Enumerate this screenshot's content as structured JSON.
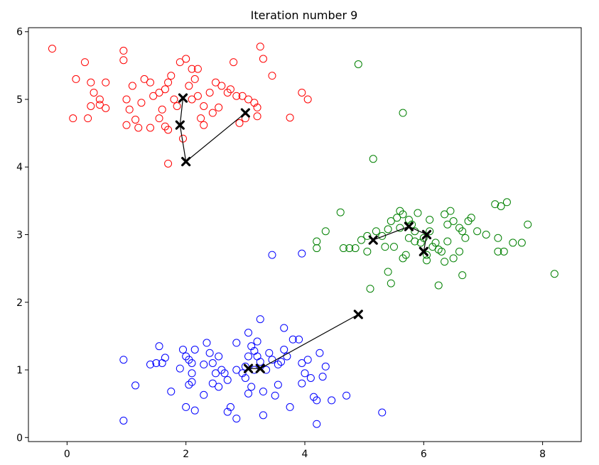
{
  "chart_data": {
    "type": "scatter",
    "title": "Iteration number 9",
    "xlabel": "",
    "ylabel": "",
    "xlim": [
      -0.65,
      8.65
    ],
    "ylim": [
      -0.06,
      6.06
    ],
    "x_ticks": [
      0,
      2,
      4,
      6,
      8
    ],
    "y_ticks": [
      0,
      1,
      2,
      3,
      4,
      5,
      6
    ],
    "grid": false,
    "legend": "none",
    "marker": "hollow-circle",
    "series": [
      {
        "color": "#ff0000",
        "points": [
          [
            -0.25,
            5.75
          ],
          [
            0.15,
            5.3
          ],
          [
            0.3,
            5.55
          ],
          [
            0.4,
            5.25
          ],
          [
            0.45,
            5.1
          ],
          [
            0.55,
            5.0
          ],
          [
            0.65,
            5.25
          ],
          [
            0.55,
            4.92
          ],
          [
            0.4,
            4.9
          ],
          [
            0.35,
            4.72
          ],
          [
            0.1,
            4.72
          ],
          [
            0.65,
            4.87
          ],
          [
            0.95,
            5.72
          ],
          [
            0.95,
            5.58
          ],
          [
            1.0,
            5.0
          ],
          [
            1.1,
            5.2
          ],
          [
            1.05,
            4.85
          ],
          [
            1.0,
            4.62
          ],
          [
            1.2,
            4.58
          ],
          [
            1.15,
            4.7
          ],
          [
            1.25,
            4.95
          ],
          [
            1.3,
            5.3
          ],
          [
            1.4,
            5.25
          ],
          [
            1.45,
            5.05
          ],
          [
            1.4,
            4.58
          ],
          [
            1.55,
            5.1
          ],
          [
            1.6,
            4.85
          ],
          [
            1.55,
            4.72
          ],
          [
            1.65,
            4.6
          ],
          [
            1.7,
            4.55
          ],
          [
            1.65,
            5.15
          ],
          [
            1.7,
            5.25
          ],
          [
            1.75,
            5.35
          ],
          [
            1.8,
            5.0
          ],
          [
            1.9,
            5.55
          ],
          [
            2.0,
            5.6
          ],
          [
            2.1,
            5.45
          ],
          [
            2.2,
            5.45
          ],
          [
            2.15,
            5.3
          ],
          [
            2.05,
            5.2
          ],
          [
            2.1,
            5.0
          ],
          [
            2.2,
            5.05
          ],
          [
            2.3,
            4.9
          ],
          [
            2.4,
            5.1
          ],
          [
            2.25,
            4.72
          ],
          [
            2.3,
            4.62
          ],
          [
            2.45,
            4.8
          ],
          [
            2.55,
            4.88
          ],
          [
            2.5,
            5.25
          ],
          [
            2.6,
            5.2
          ],
          [
            2.75,
            5.15
          ],
          [
            2.8,
            5.55
          ],
          [
            2.85,
            5.05
          ],
          [
            2.95,
            5.05
          ],
          [
            3.05,
            5.0
          ],
          [
            3.15,
            4.95
          ],
          [
            3.2,
            4.88
          ],
          [
            3.3,
            5.6
          ],
          [
            3.25,
            5.78
          ],
          [
            3.45,
            5.35
          ],
          [
            3.75,
            4.73
          ],
          [
            3.95,
            5.1
          ],
          [
            4.05,
            5.0
          ],
          [
            1.7,
            4.05
          ],
          [
            1.95,
            4.42
          ],
          [
            2.9,
            4.65
          ],
          [
            3.0,
            4.72
          ],
          [
            1.85,
            4.9
          ],
          [
            2.7,
            5.1
          ],
          [
            3.2,
            4.75
          ]
        ]
      },
      {
        "color": "#008000",
        "points": [
          [
            4.9,
            5.52
          ],
          [
            5.65,
            4.8
          ],
          [
            5.15,
            4.12
          ],
          [
            4.2,
            2.9
          ],
          [
            4.2,
            2.8
          ],
          [
            4.35,
            3.05
          ],
          [
            4.6,
            3.33
          ],
          [
            4.65,
            2.8
          ],
          [
            4.75,
            2.8
          ],
          [
            4.85,
            2.8
          ],
          [
            4.95,
            2.92
          ],
          [
            5.05,
            2.98
          ],
          [
            5.05,
            2.75
          ],
          [
            5.1,
            2.2
          ],
          [
            5.2,
            3.05
          ],
          [
            5.3,
            2.98
          ],
          [
            5.35,
            2.82
          ],
          [
            5.4,
            3.08
          ],
          [
            5.4,
            2.45
          ],
          [
            5.45,
            2.28
          ],
          [
            5.45,
            3.2
          ],
          [
            5.55,
            3.25
          ],
          [
            5.6,
            3.35
          ],
          [
            5.65,
            3.3
          ],
          [
            5.6,
            3.1
          ],
          [
            5.7,
            2.7
          ],
          [
            5.75,
            2.95
          ],
          [
            5.8,
            3.15
          ],
          [
            5.85,
            3.05
          ],
          [
            5.9,
            3.32
          ],
          [
            5.95,
            2.88
          ],
          [
            6.0,
            2.95
          ],
          [
            6.05,
            2.7
          ],
          [
            6.1,
            3.05
          ],
          [
            6.05,
            2.62
          ],
          [
            6.15,
            2.82
          ],
          [
            6.2,
            2.88
          ],
          [
            6.25,
            2.78
          ],
          [
            6.3,
            2.75
          ],
          [
            6.35,
            3.3
          ],
          [
            6.45,
            3.35
          ],
          [
            6.5,
            3.2
          ],
          [
            6.4,
            2.9
          ],
          [
            6.35,
            2.6
          ],
          [
            6.5,
            2.65
          ],
          [
            6.6,
            3.1
          ],
          [
            6.65,
            3.05
          ],
          [
            6.7,
            2.95
          ],
          [
            6.6,
            2.75
          ],
          [
            6.8,
            3.25
          ],
          [
            6.9,
            3.05
          ],
          [
            7.05,
            3.0
          ],
          [
            7.2,
            3.45
          ],
          [
            7.3,
            3.42
          ],
          [
            7.4,
            3.48
          ],
          [
            7.25,
            2.95
          ],
          [
            7.25,
            2.75
          ],
          [
            7.35,
            2.75
          ],
          [
            7.5,
            2.88
          ],
          [
            7.65,
            2.88
          ],
          [
            7.75,
            3.15
          ],
          [
            8.2,
            2.42
          ],
          [
            6.25,
            2.25
          ],
          [
            6.65,
            2.4
          ],
          [
            5.75,
            3.22
          ],
          [
            5.85,
            2.9
          ],
          [
            6.1,
            3.22
          ],
          [
            6.4,
            3.15
          ],
          [
            6.75,
            3.2
          ],
          [
            5.5,
            2.82
          ],
          [
            5.65,
            2.65
          ]
        ]
      },
      {
        "color": "#0000ff",
        "points": [
          [
            0.95,
            1.15
          ],
          [
            0.95,
            0.25
          ],
          [
            1.15,
            0.77
          ],
          [
            1.4,
            1.08
          ],
          [
            1.5,
            1.1
          ],
          [
            1.6,
            1.1
          ],
          [
            1.55,
            1.35
          ],
          [
            1.65,
            1.18
          ],
          [
            1.75,
            0.68
          ],
          [
            1.9,
            1.02
          ],
          [
            1.95,
            1.3
          ],
          [
            2.0,
            1.2
          ],
          [
            2.05,
            1.15
          ],
          [
            2.1,
            1.1
          ],
          [
            2.15,
            1.3
          ],
          [
            2.1,
            0.95
          ],
          [
            2.05,
            0.78
          ],
          [
            2.1,
            0.82
          ],
          [
            2.0,
            0.45
          ],
          [
            2.15,
            0.4
          ],
          [
            2.3,
            0.63
          ],
          [
            2.35,
            1.4
          ],
          [
            2.4,
            1.25
          ],
          [
            2.45,
            1.1
          ],
          [
            2.5,
            0.95
          ],
          [
            2.55,
            1.2
          ],
          [
            2.6,
            1.0
          ],
          [
            2.65,
            0.95
          ],
          [
            2.45,
            0.8
          ],
          [
            2.55,
            0.75
          ],
          [
            2.7,
            0.85
          ],
          [
            2.75,
            0.45
          ],
          [
            2.7,
            0.38
          ],
          [
            2.85,
            1.0
          ],
          [
            2.85,
            0.28
          ],
          [
            2.95,
            0.95
          ],
          [
            3.0,
            0.88
          ],
          [
            3.0,
            1.05
          ],
          [
            3.05,
            0.65
          ],
          [
            3.1,
            0.75
          ],
          [
            3.05,
            1.2
          ],
          [
            3.1,
            1.35
          ],
          [
            3.15,
            1.28
          ],
          [
            3.2,
            1.2
          ],
          [
            3.15,
            1.0
          ],
          [
            3.25,
            1.12
          ],
          [
            3.35,
            1.0
          ],
          [
            3.3,
            0.68
          ],
          [
            3.3,
            0.33
          ],
          [
            3.4,
            1.25
          ],
          [
            3.45,
            1.15
          ],
          [
            3.55,
            0.78
          ],
          [
            3.5,
            0.62
          ],
          [
            3.55,
            1.08
          ],
          [
            3.6,
            1.12
          ],
          [
            3.65,
            1.3
          ],
          [
            3.7,
            1.2
          ],
          [
            3.75,
            0.45
          ],
          [
            3.8,
            1.45
          ],
          [
            3.9,
            1.45
          ],
          [
            3.95,
            1.1
          ],
          [
            3.95,
            0.8
          ],
          [
            4.0,
            0.95
          ],
          [
            4.05,
            1.15
          ],
          [
            4.1,
            0.88
          ],
          [
            4.15,
            0.6
          ],
          [
            4.2,
            0.55
          ],
          [
            4.2,
            0.2
          ],
          [
            4.25,
            1.25
          ],
          [
            4.3,
            0.9
          ],
          [
            4.35,
            1.05
          ],
          [
            4.45,
            0.55
          ],
          [
            4.7,
            0.62
          ],
          [
            5.3,
            0.37
          ],
          [
            3.45,
            2.7
          ],
          [
            3.95,
            2.72
          ],
          [
            3.25,
            1.75
          ],
          [
            3.65,
            1.62
          ],
          [
            2.85,
            1.4
          ],
          [
            3.05,
            1.55
          ],
          [
            3.2,
            1.42
          ],
          [
            2.3,
            1.08
          ]
        ]
      }
    ],
    "centroid_color": "#000000",
    "centroid_paths": [
      [
        [
          3.0,
          4.8
        ],
        [
          2.0,
          4.08
        ],
        [
          1.9,
          4.62
        ],
        [
          1.95,
          5.02
        ]
      ],
      [
        [
          4.9,
          1.82
        ],
        [
          3.25,
          1.02
        ],
        [
          3.05,
          1.02
        ]
      ],
      [
        [
          6.0,
          2.75
        ],
        [
          6.05,
          3.0
        ],
        [
          5.75,
          3.12
        ],
        [
          5.15,
          2.92
        ]
      ]
    ]
  }
}
